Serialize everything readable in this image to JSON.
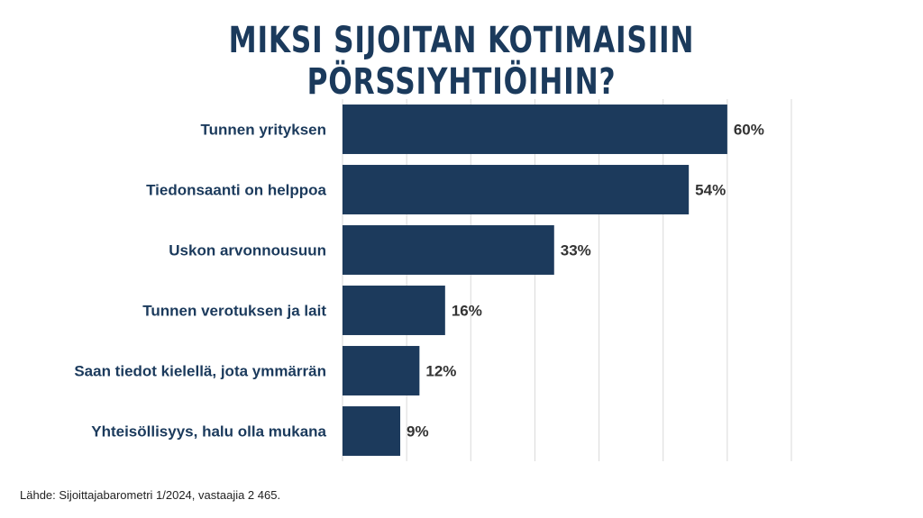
{
  "chart_data": {
    "type": "bar",
    "orientation": "horizontal",
    "title": "MIKSI SIJOITAN KOTIMAISIIN PÖRSSIYHTIÖIHIN?",
    "categories": [
      "Tunnen yrityksen",
      "Tiedonsaanti on helppoa",
      "Uskon arvonnousuun",
      "Tunnen verotuksen ja lait",
      "Saan tiedot kielellä, jota ymmärrän",
      "Yhteisöllisyys, halu olla mukana"
    ],
    "values": [
      60,
      54,
      33,
      16,
      12,
      9
    ],
    "value_labels": [
      "60%",
      "54%",
      "33%",
      "16%",
      "12%",
      "9%"
    ],
    "unit": "%",
    "xlim": [
      0,
      70
    ],
    "grid": true,
    "legend": "none",
    "colors": {
      "bar": "#1c3a5c",
      "label": "#1b3a5c",
      "value": "#333333",
      "grid": "#d9d9d9"
    }
  },
  "source": "Lähde: Sijoittajabarometri 1/2024, vastaajia 2 465."
}
